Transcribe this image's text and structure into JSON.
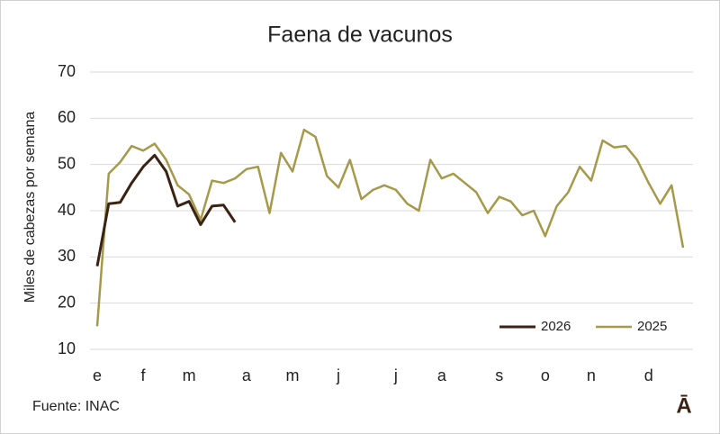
{
  "chart_data": {
    "type": "line",
    "title": "Faena de vacunos",
    "y_label": "Miles de cabezas por semana",
    "categories": [
      "e",
      null,
      null,
      null,
      "f",
      null,
      null,
      null,
      "m",
      null,
      null,
      null,
      null,
      "a",
      null,
      null,
      null,
      "m",
      null,
      null,
      null,
      "j",
      null,
      null,
      null,
      null,
      "j",
      null,
      null,
      null,
      "a",
      null,
      null,
      null,
      null,
      "s",
      null,
      null,
      null,
      "o",
      null,
      null,
      null,
      "n",
      null,
      null,
      null,
      null,
      "d",
      null,
      null,
      null
    ],
    "series": [
      {
        "name": "2026",
        "color": "#3b2314",
        "values": [
          28,
          41.5,
          41.8,
          46,
          49.5,
          52,
          48.5,
          41,
          42,
          37,
          41,
          41.2,
          37.5,
          null,
          null,
          null,
          null,
          null,
          null,
          null,
          null,
          null,
          null,
          null,
          null,
          null,
          null,
          null,
          null,
          null,
          null,
          null,
          null,
          null,
          null,
          null,
          null,
          null,
          null,
          null,
          null,
          null,
          null,
          null,
          null,
          null,
          null,
          null,
          null,
          null,
          null,
          null
        ]
      },
      {
        "name": "2025",
        "color": "#a59a4a",
        "values": [
          15,
          48,
          50.5,
          54,
          53,
          54.5,
          51,
          45.5,
          43.5,
          38,
          46.5,
          46,
          47,
          49,
          49.5,
          39.5,
          52.5,
          48.5,
          57.5,
          56,
          47.5,
          45,
          51,
          42.5,
          44.5,
          45.5,
          44.5,
          41.5,
          40,
          51,
          47,
          48,
          46,
          44,
          39.5,
          43,
          42,
          39,
          40,
          34.5,
          41,
          44,
          49.5,
          46.5,
          55.2,
          53.7,
          54,
          51,
          46,
          41.5,
          45.5,
          32
        ]
      }
    ],
    "ylim": [
      10,
      70
    ],
    "yticks": [
      10,
      20,
      30,
      40,
      50,
      60,
      70
    ],
    "grid": true,
    "legend": "bottom-right",
    "source": "Fuente: INAC",
    "logo": "Ā"
  }
}
